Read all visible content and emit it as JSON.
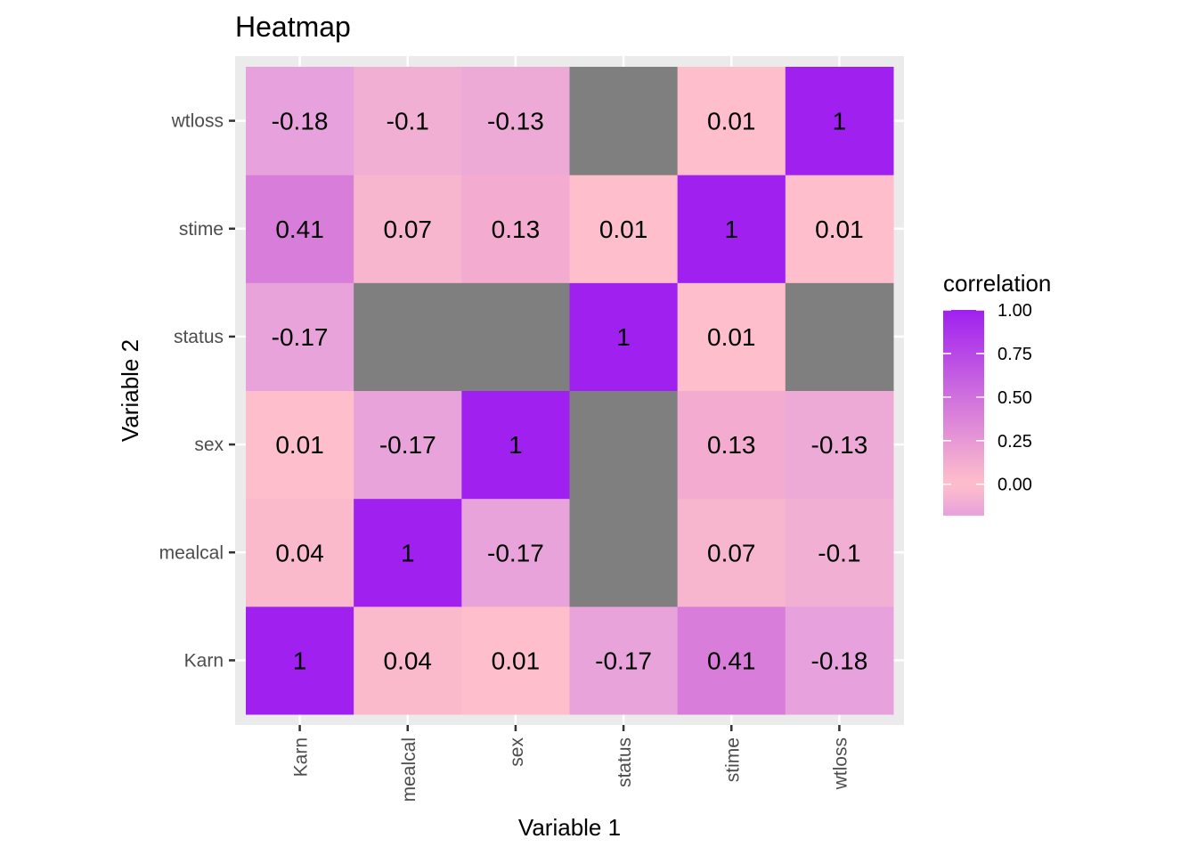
{
  "chart_data": {
    "type": "heatmap",
    "title": "Heatmap",
    "xlabel": "Variable 1",
    "ylabel": "Variable 2",
    "x_categories": [
      "Karn",
      "mealcal",
      "sex",
      "status",
      "stime",
      "wtloss"
    ],
    "y_categories": [
      "Karn",
      "mealcal",
      "sex",
      "status",
      "stime",
      "wtloss"
    ],
    "values": [
      [
        1,
        0.04,
        0.01,
        -0.17,
        0.41,
        -0.18
      ],
      [
        0.04,
        1,
        -0.17,
        null,
        0.07,
        -0.1
      ],
      [
        0.01,
        -0.17,
        1,
        null,
        0.13,
        -0.13
      ],
      [
        -0.17,
        null,
        null,
        1,
        0.01,
        null
      ],
      [
        0.41,
        0.07,
        0.13,
        0.01,
        1,
        0.01
      ],
      [
        -0.18,
        -0.1,
        -0.13,
        null,
        0.01,
        1
      ]
    ],
    "value_layout": "values[y_index][x_index]",
    "legend": {
      "title": "correlation",
      "placement": "right",
      "ticks": [
        "1.00",
        "0.75",
        "0.50",
        "0.25",
        "0.00"
      ],
      "tick_values": [
        1.0,
        0.75,
        0.5,
        0.25,
        0.0
      ],
      "range": [
        -0.18,
        1.0
      ]
    },
    "color_scale": {
      "low_color": "#e7a1dc",
      "mid_color": "#ffc0cb",
      "high_color": "#a020f0",
      "na_color": "#7f7f7f",
      "midpoint": 0
    },
    "panel_background": "#ebebeb",
    "grid": true
  }
}
